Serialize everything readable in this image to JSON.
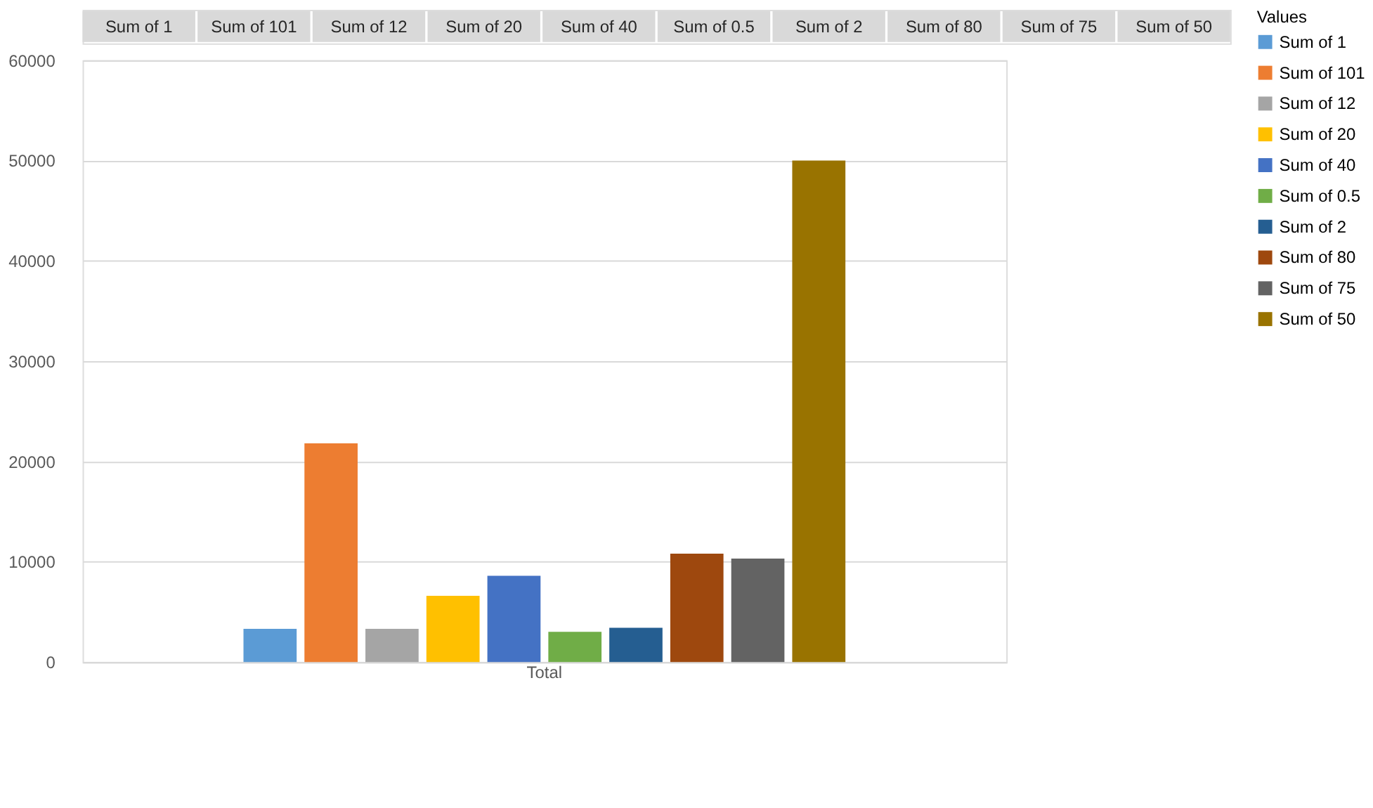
{
  "chart_data": {
    "type": "bar",
    "categories": [
      "Total"
    ],
    "xlabel": null,
    "legend_title": "Values",
    "legend": "right",
    "grid": "y",
    "ylim": [
      0,
      60000
    ],
    "yticks": [
      0,
      10000,
      20000,
      30000,
      40000,
      50000,
      60000
    ],
    "annotations": [
      "Sum of 1",
      "Sum of 101",
      "Sum of 12",
      "Sum of 20",
      "Sum of 40",
      "Sum of 0.5",
      "Sum of 2",
      "Sum of 80",
      "Sum of 75",
      "Sum of 50"
    ],
    "series": [
      {
        "name": "Sum of 1",
        "color": "#5b9bd5",
        "values": [
          3300
        ]
      },
      {
        "name": "Sum of 101",
        "color": "#ed7d31",
        "values": [
          21800
        ]
      },
      {
        "name": "Sum of 12",
        "color": "#a5a5a5",
        "values": [
          3300
        ]
      },
      {
        "name": "Sum of 20",
        "color": "#ffc000",
        "values": [
          6600
        ]
      },
      {
        "name": "Sum of 40",
        "color": "#4472c4",
        "values": [
          8600
        ]
      },
      {
        "name": "Sum of 0.5",
        "color": "#70ad47",
        "values": [
          3000
        ]
      },
      {
        "name": "Sum of 2",
        "color": "#255e91",
        "values": [
          3400
        ]
      },
      {
        "name": "Sum of 80",
        "color": "#9e480e",
        "values": [
          10800
        ]
      },
      {
        "name": "Sum of 75",
        "color": "#636363",
        "values": [
          10300
        ]
      },
      {
        "name": "Sum of 50",
        "color": "#997300",
        "values": [
          50000
        ]
      }
    ]
  }
}
